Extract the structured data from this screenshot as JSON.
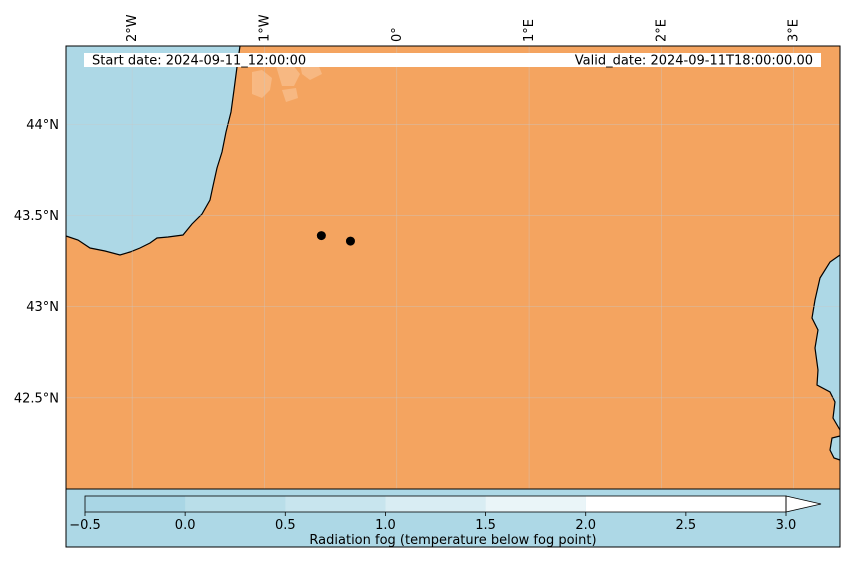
{
  "map": {
    "header": {
      "start_label": "Start date: 2024-09-11_12:00:00",
      "valid_label": "Valid_date: 2024-09-11T18:00:00.00"
    },
    "longitude_ticks": [
      "2°W",
      "1°W",
      "0°",
      "1°E",
      "2°E",
      "3°E"
    ],
    "latitude_ticks": [
      "44°N",
      "43.5°N",
      "43°N",
      "42.5°N"
    ],
    "extent": {
      "lon_min": -2.5,
      "lon_max": 3.35,
      "lat_min": 42.0,
      "lat_max": 44.43
    },
    "stations": [
      {
        "lon": -0.57,
        "lat": 43.39
      },
      {
        "lon": -0.35,
        "lat": 43.36
      }
    ],
    "colors": {
      "land": "#f4a460",
      "sea": "#add8e6",
      "coast": "#000000",
      "grid": "#c8c8c8"
    }
  },
  "colorbar": {
    "label": "Radiation fog (temperature below fog point)",
    "ticks": [
      "−0.5",
      "0.0",
      "0.5",
      "1.0",
      "1.5",
      "2.0",
      "2.5",
      "3.0"
    ],
    "range": [
      -0.5,
      3.0
    ],
    "extend": "max",
    "bands": [
      {
        "from": -0.5,
        "to": 0.0,
        "color": "#a9d6e5"
      },
      {
        "from": 0.0,
        "to": 0.5,
        "color": "#b9dee9"
      },
      {
        "from": 0.5,
        "to": 1.0,
        "color": "#c8e5ee"
      },
      {
        "from": 1.0,
        "to": 1.5,
        "color": "#d9edf3"
      },
      {
        "from": 1.5,
        "to": 2.0,
        "color": "#eaf5f8"
      },
      {
        "from": 2.0,
        "to": 3.0,
        "color": "#ffffff"
      }
    ]
  }
}
